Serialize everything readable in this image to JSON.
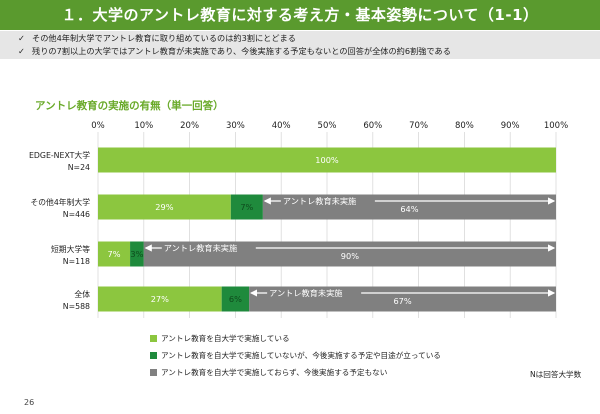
{
  "header": {
    "title": "１．大学のアントレ教育に対する考え方・基本姿勢について（1-1）"
  },
  "bullets": [
    {
      "check": "✓",
      "text": "その他4年制大学でアントレ教育に取り組めているのは約3割にとどまる"
    },
    {
      "check": "✓",
      "text": "残りの7割以上の大学ではアントレ教育が未実施であり、今後実施する予定もないとの回答が全体の約6割強である"
    }
  ],
  "colors": {
    "series1": "#8cc63f",
    "series2": "#1f8a3c",
    "series3": "#808080",
    "title_bar": "#5a9a2e"
  },
  "chart_data": {
    "type": "bar",
    "orientation": "horizontal",
    "stacked": true,
    "title": "アントレ教育の実施の有無（単一回答）",
    "xlim": [
      0,
      100
    ],
    "x_ticks": [
      "0%",
      "10%",
      "20%",
      "30%",
      "40%",
      "50%",
      "60%",
      "70%",
      "80%",
      "90%",
      "100%"
    ],
    "categories": [
      {
        "name": "EDGE-NEXT大学",
        "n": "N=24"
      },
      {
        "name": "その他4年制大学",
        "n": "N=446"
      },
      {
        "name": "短期大学等",
        "n": "N=118"
      },
      {
        "name": "全体",
        "n": "N=588"
      }
    ],
    "series": [
      {
        "name": "アントレ教育を自大学で実施している",
        "values": [
          100,
          29,
          7,
          27
        ],
        "labels": [
          "100%",
          "29%",
          "7%",
          "27%"
        ]
      },
      {
        "name": "アントレ教育を自大学で実施していないが、今後実施する予定や目途が立っている",
        "values": [
          0,
          7,
          3,
          6
        ],
        "labels": [
          "",
          "7%",
          "3%",
          "6%"
        ]
      },
      {
        "name": "アントレ教育を自大学で実施しておらず、今後実施する予定もない",
        "values": [
          0,
          64,
          90,
          67
        ],
        "labels": [
          "",
          "64%",
          "90%",
          "67%"
        ]
      }
    ],
    "annotation": "アントレ教育未実施",
    "legend_position": "bottom",
    "grid": true
  },
  "note": "Nは回答大学数",
  "page_number": "26"
}
